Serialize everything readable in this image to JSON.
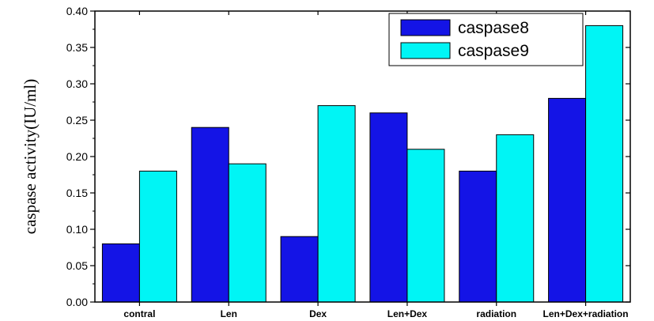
{
  "chart_data": {
    "type": "bar",
    "categories": [
      "contral",
      "Len",
      "Dex",
      "Len+Dex",
      "radiation",
      "Len+Dex+radiation"
    ],
    "series": [
      {
        "name": "caspase8",
        "values": [
          0.08,
          0.24,
          0.09,
          0.26,
          0.18,
          0.28
        ],
        "color": "#1414e6"
      },
      {
        "name": "caspase9",
        "values": [
          0.18,
          0.19,
          0.27,
          0.21,
          0.23,
          0.38
        ],
        "color": "#00f5f5"
      }
    ],
    "ylabel": "caspase activity(IU/ml)",
    "xlabel": "",
    "ylim": [
      0,
      0.4
    ],
    "yticks": [
      "0.00",
      "0.05",
      "0.10",
      "0.15",
      "0.20",
      "0.25",
      "0.30",
      "0.35",
      "0.40"
    ],
    "legend_position": "top-right",
    "grid": false
  }
}
